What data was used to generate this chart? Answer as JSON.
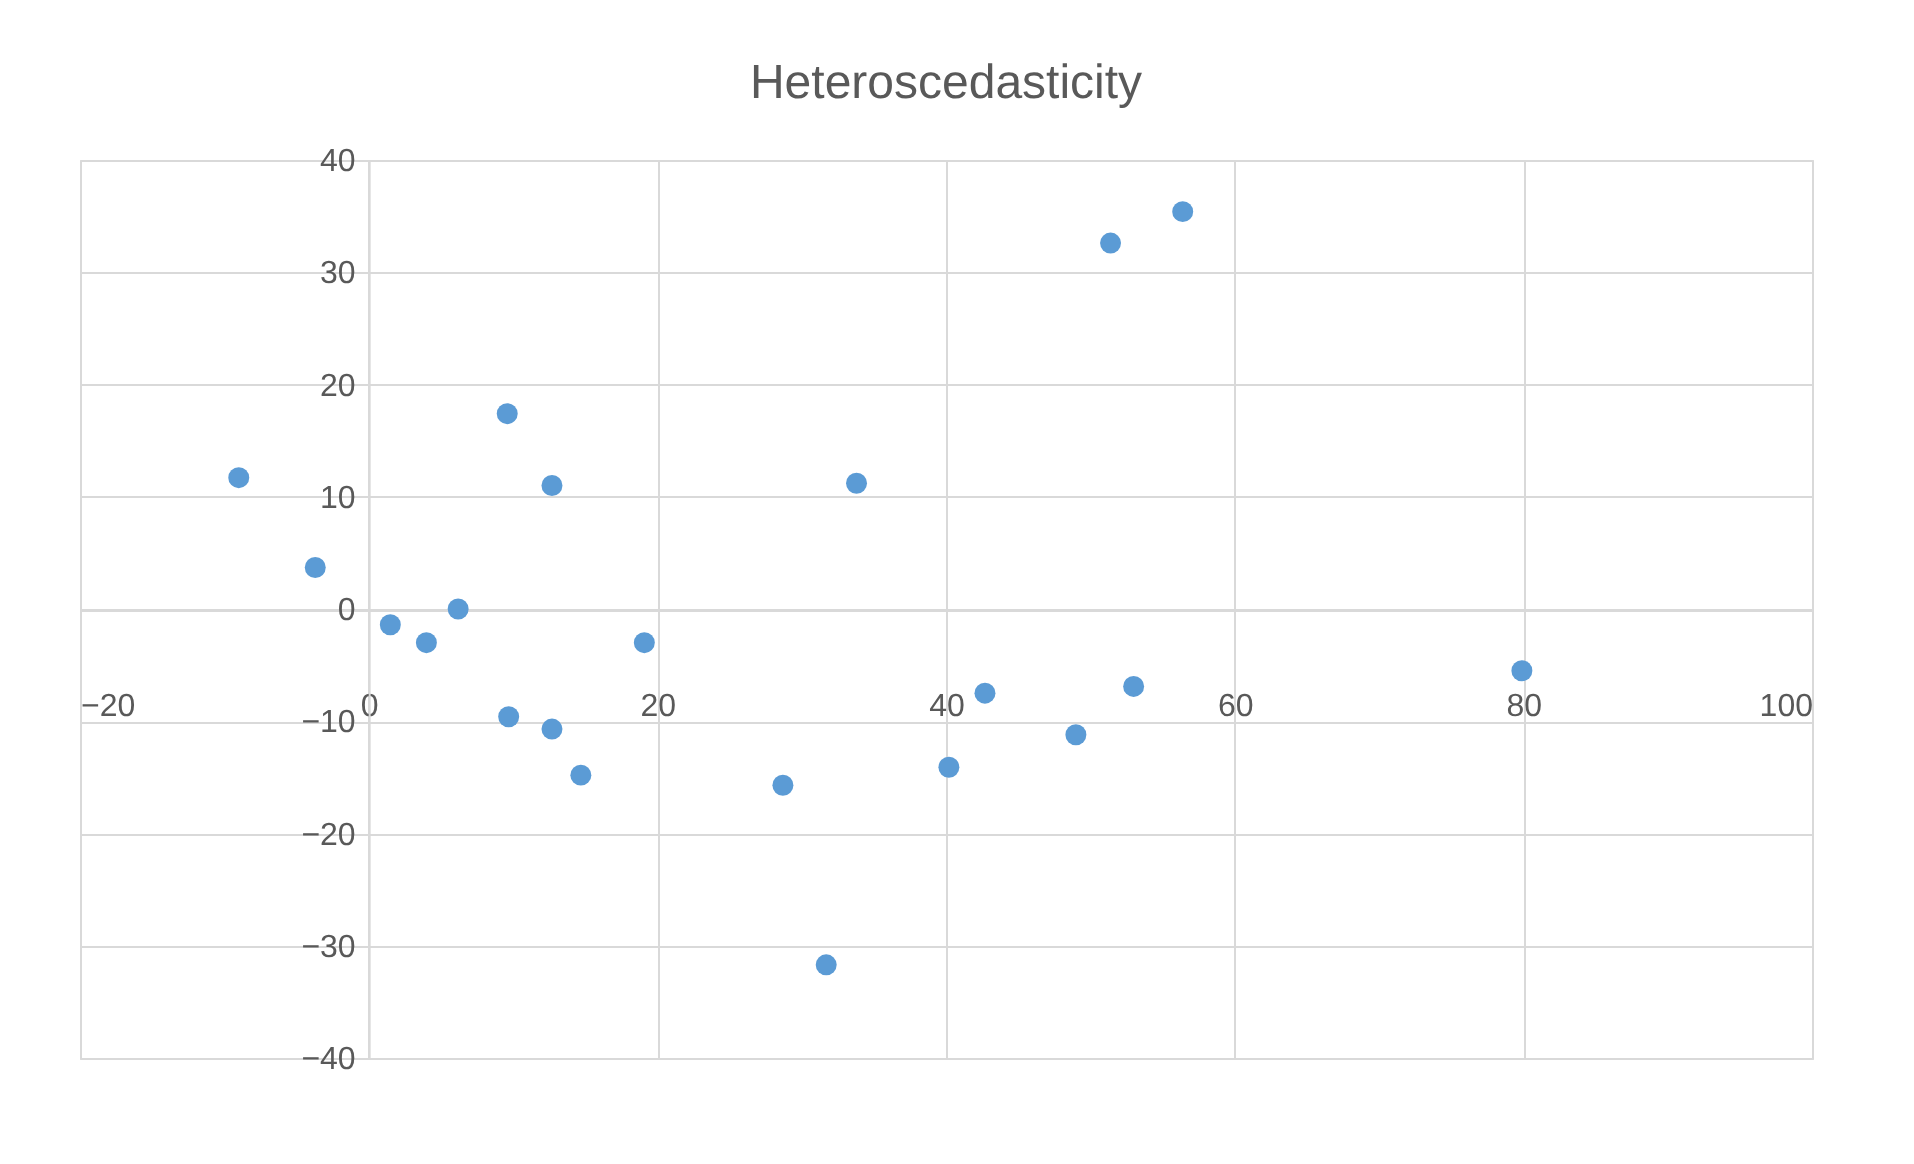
{
  "chart_data": {
    "type": "scatter",
    "title": "Heteroscedasticity",
    "x": [
      -9.0,
      -3.7,
      1.5,
      4.0,
      6.2,
      9.6,
      9.7,
      12.7,
      12.7,
      14.7,
      19.1,
      28.7,
      31.7,
      33.8,
      40.2,
      42.7,
      49.0,
      51.4,
      53.0,
      56.4,
      79.9
    ],
    "series": [
      {
        "color": "#5b9bd5",
        "values": [
          11.7,
          3.7,
          -1.4,
          -3.0,
          0,
          17.4,
          -9.6,
          11.0,
          -10.7,
          -14.8,
          -3.0,
          -15.7,
          -31.7,
          11.2,
          -14.1,
          -7.5,
          -11.2,
          32.6,
          -6.9,
          35.4,
          -5.5
        ]
      }
    ],
    "xlim": [
      -20,
      100
    ],
    "xticks": [
      -20,
      0,
      20,
      40,
      60,
      80,
      100
    ],
    "ylim": [
      -40,
      40
    ],
    "yticks": [
      -40,
      -30,
      -20,
      -10,
      0,
      10,
      20,
      30,
      40
    ],
    "grid": true,
    "marker": "circle",
    "legend": false
  }
}
